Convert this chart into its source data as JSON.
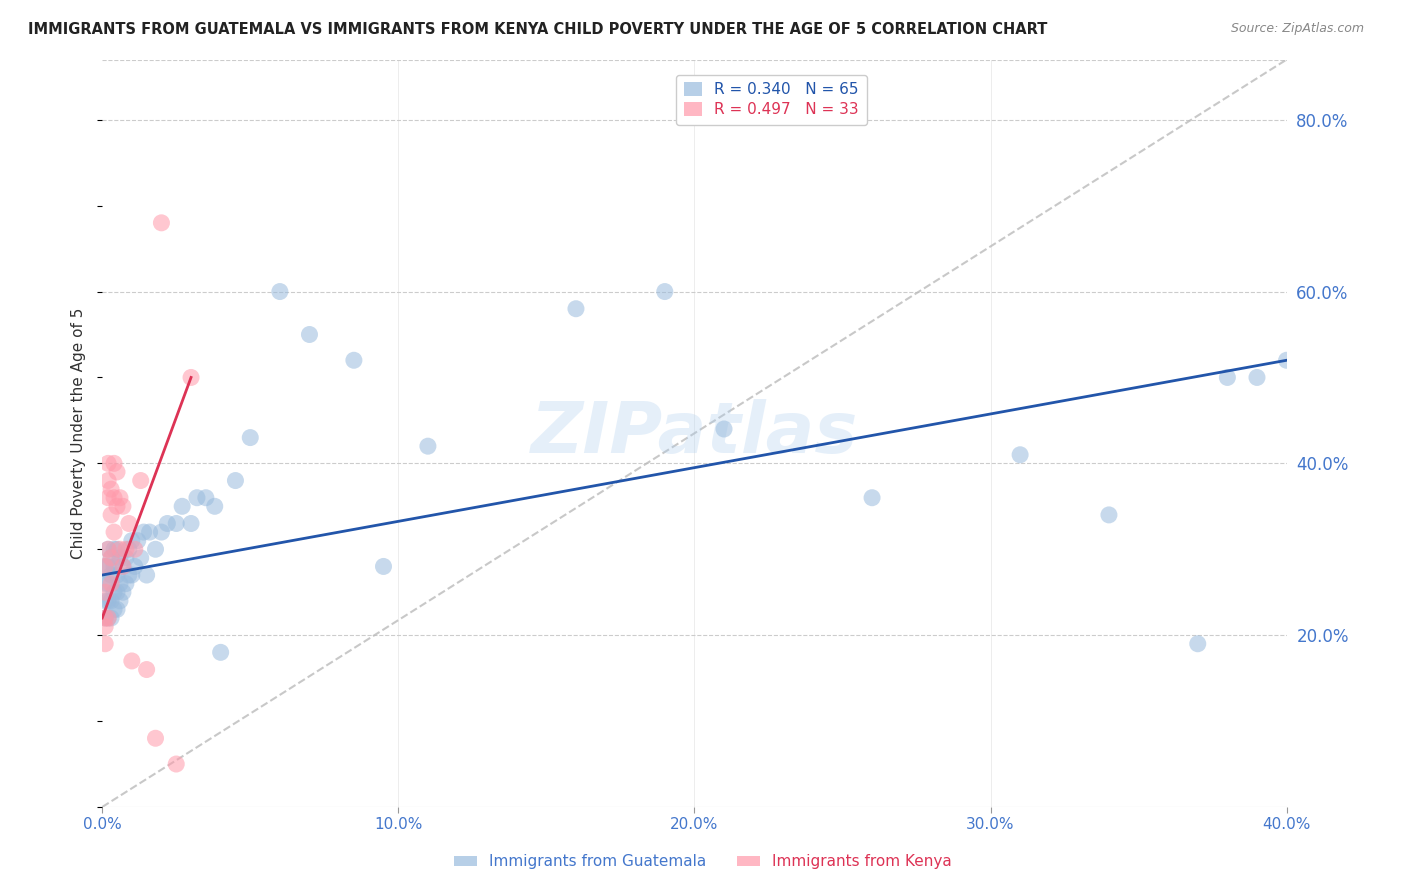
{
  "title": "IMMIGRANTS FROM GUATEMALA VS IMMIGRANTS FROM KENYA CHILD POVERTY UNDER THE AGE OF 5 CORRELATION CHART",
  "source": "Source: ZipAtlas.com",
  "ylabel": "Child Poverty Under the Age of 5",
  "xlim": [
    0.0,
    0.4
  ],
  "ylim": [
    0.0,
    0.87
  ],
  "xticks": [
    0.0,
    0.1,
    0.2,
    0.3,
    0.4
  ],
  "yticks_right": [
    0.2,
    0.4,
    0.6,
    0.8
  ],
  "legend1_R": "0.340",
  "legend1_N": "65",
  "legend2_R": "0.497",
  "legend2_N": "33",
  "blue_color": "#99BBDD",
  "pink_color": "#FF99AA",
  "blue_line_color": "#2255AA",
  "pink_line_color": "#DD3355",
  "ref_line_color": "#BBBBBB",
  "background_color": "#FFFFFF",
  "grid_color": "#CCCCCC",
  "axis_label_color": "#4477CC",
  "title_color": "#222222",
  "watermark": "ZIPatlas",
  "watermark_color": "#AACCEE",
  "guatemala_x": [
    0.001,
    0.001,
    0.001,
    0.001,
    0.002,
    0.002,
    0.002,
    0.002,
    0.002,
    0.003,
    0.003,
    0.003,
    0.003,
    0.004,
    0.004,
    0.004,
    0.004,
    0.005,
    0.005,
    0.005,
    0.005,
    0.006,
    0.006,
    0.006,
    0.007,
    0.007,
    0.008,
    0.008,
    0.009,
    0.009,
    0.01,
    0.01,
    0.011,
    0.012,
    0.013,
    0.014,
    0.015,
    0.016,
    0.018,
    0.02,
    0.022,
    0.025,
    0.027,
    0.03,
    0.032,
    0.035,
    0.038,
    0.04,
    0.045,
    0.05,
    0.06,
    0.07,
    0.085,
    0.095,
    0.11,
    0.16,
    0.19,
    0.21,
    0.26,
    0.31,
    0.34,
    0.37,
    0.38,
    0.39,
    0.4
  ],
  "guatemala_y": [
    0.22,
    0.24,
    0.26,
    0.28,
    0.22,
    0.24,
    0.26,
    0.28,
    0.3,
    0.22,
    0.24,
    0.27,
    0.29,
    0.23,
    0.25,
    0.28,
    0.3,
    0.23,
    0.25,
    0.27,
    0.3,
    0.24,
    0.26,
    0.29,
    0.25,
    0.28,
    0.26,
    0.29,
    0.27,
    0.3,
    0.27,
    0.31,
    0.28,
    0.31,
    0.29,
    0.32,
    0.27,
    0.32,
    0.3,
    0.32,
    0.33,
    0.33,
    0.35,
    0.33,
    0.36,
    0.36,
    0.35,
    0.18,
    0.38,
    0.43,
    0.6,
    0.55,
    0.52,
    0.28,
    0.42,
    0.58,
    0.6,
    0.44,
    0.36,
    0.41,
    0.34,
    0.19,
    0.5,
    0.5,
    0.52
  ],
  "kenya_x": [
    0.001,
    0.001,
    0.001,
    0.001,
    0.001,
    0.002,
    0.002,
    0.002,
    0.002,
    0.002,
    0.003,
    0.003,
    0.003,
    0.003,
    0.004,
    0.004,
    0.004,
    0.005,
    0.005,
    0.006,
    0.006,
    0.007,
    0.007,
    0.008,
    0.009,
    0.01,
    0.011,
    0.013,
    0.015,
    0.018,
    0.02,
    0.025,
    0.03
  ],
  "kenya_y": [
    0.19,
    0.21,
    0.22,
    0.25,
    0.28,
    0.22,
    0.3,
    0.36,
    0.38,
    0.4,
    0.26,
    0.29,
    0.34,
    0.37,
    0.32,
    0.36,
    0.4,
    0.35,
    0.39,
    0.3,
    0.36,
    0.28,
    0.35,
    0.3,
    0.33,
    0.17,
    0.3,
    0.38,
    0.16,
    0.08,
    0.68,
    0.05,
    0.5
  ],
  "blue_trend_x0": 0.0,
  "blue_trend_y0": 0.27,
  "blue_trend_x1": 0.4,
  "blue_trend_y1": 0.52,
  "pink_trend_x0": 0.0,
  "pink_trend_y0": 0.22,
  "pink_trend_x1": 0.03,
  "pink_trend_y1": 0.5
}
